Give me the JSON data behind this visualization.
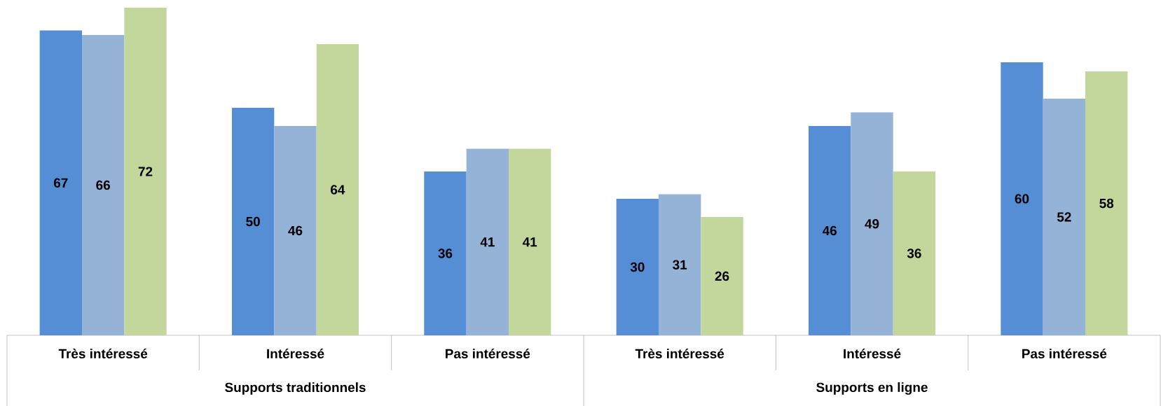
{
  "chart_data": {
    "type": "bar",
    "categories": [
      "Très intéressé",
      "Intéressé",
      "Pas intéressé",
      "Très intéressé",
      "Intéressé",
      "Pas intéressé"
    ],
    "series": [
      {
        "color": "#558ed5",
        "values": [
          67,
          50,
          36,
          30,
          46,
          60
        ]
      },
      {
        "color": "#95b3d7",
        "values": [
          66,
          46,
          41,
          31,
          49,
          52
        ]
      },
      {
        "color": "#c3d69b",
        "values": [
          72,
          64,
          41,
          26,
          36,
          58
        ]
      }
    ],
    "data_labels": true,
    "ylim": [
      0,
      72
    ],
    "annotations": [
      "Supports traditionnels",
      "Supports en ligne"
    ]
  }
}
